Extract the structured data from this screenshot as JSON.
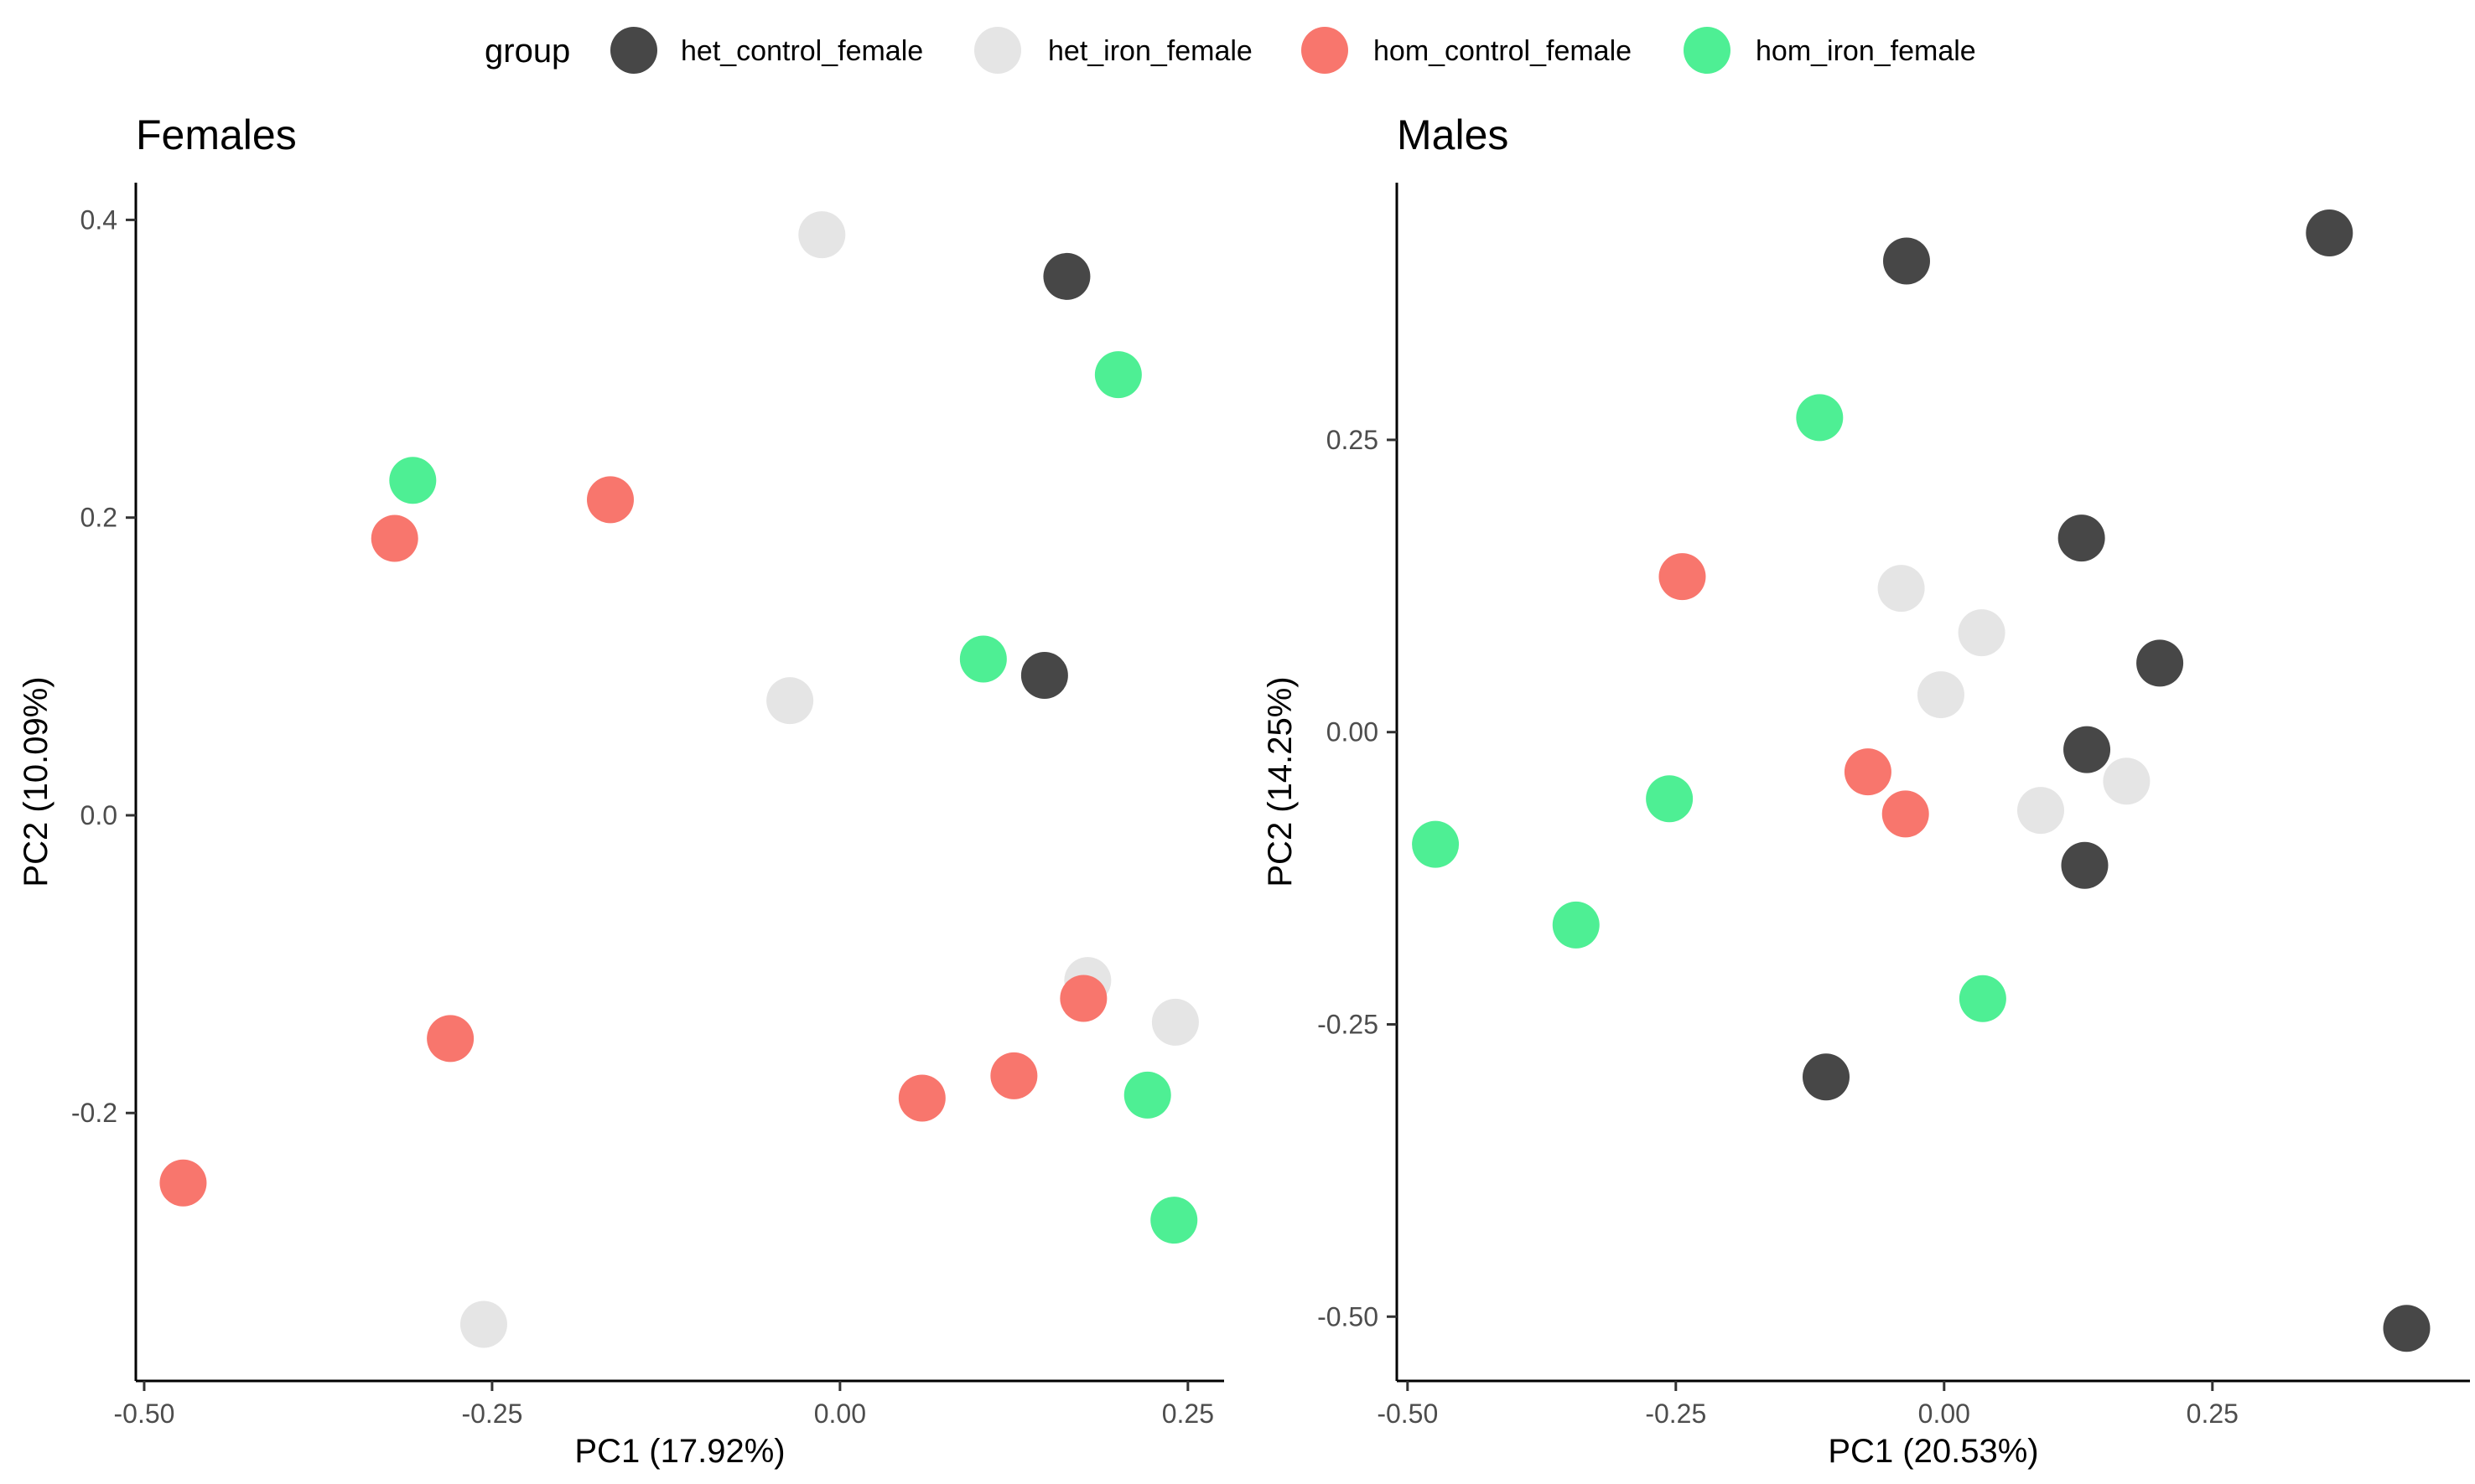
{
  "legend": {
    "title": "group",
    "items": [
      {
        "label": "het_control_female",
        "color": "#474747"
      },
      {
        "label": "het_iron_female",
        "color": "#e5e5e5"
      },
      {
        "label": "hom_control_female",
        "color": "#f8766d"
      },
      {
        "label": "hom_iron_female",
        "color": "#4eef94"
      }
    ]
  },
  "chart_data": [
    {
      "type": "scatter",
      "title": "Females",
      "xlabel": "PC1 (17.92%)",
      "ylabel": "PC2 (10.09%)",
      "xlim": [
        -0.506,
        0.276
      ],
      "ylim": [
        -0.38,
        0.425
      ],
      "xticks": [
        -0.5,
        -0.25,
        0.0,
        0.25
      ],
      "xtick_labels": [
        "-0.50",
        "-0.25",
        "0.00",
        "0.25"
      ],
      "yticks": [
        -0.2,
        0.0,
        0.2,
        0.4
      ],
      "ytick_labels": [
        "-0.2",
        "0.0",
        "0.2",
        "0.4"
      ],
      "grid": false,
      "series": [
        {
          "name": "het_control_female",
          "color": "#474747",
          "points": [
            [
              0.163,
              0.362
            ],
            [
              0.147,
              0.094
            ]
          ]
        },
        {
          "name": "het_iron_female",
          "color": "#e5e5e5",
          "points": [
            [
              -0.013,
              0.39
            ],
            [
              -0.036,
              0.077
            ],
            [
              0.178,
              -0.111
            ],
            [
              0.241,
              -0.139
            ],
            [
              -0.256,
              -0.342
            ]
          ]
        },
        {
          "name": "hom_control_female",
          "color": "#f8766d",
          "points": [
            [
              -0.32,
              0.186
            ],
            [
              -0.165,
              0.212
            ],
            [
              -0.28,
              -0.15
            ],
            [
              -0.472,
              -0.247
            ],
            [
              0.059,
              -0.19
            ],
            [
              0.125,
              -0.175
            ],
            [
              0.175,
              -0.123
            ]
          ]
        },
        {
          "name": "hom_iron_female",
          "color": "#4eef94",
          "points": [
            [
              -0.307,
              0.225
            ],
            [
              0.2,
              0.296
            ],
            [
              0.103,
              0.105
            ],
            [
              0.221,
              -0.188
            ],
            [
              0.24,
              -0.272
            ]
          ]
        }
      ]
    },
    {
      "type": "scatter",
      "title": "Males",
      "xlabel": "PC1 (20.53%)",
      "ylabel": "PC2 (14.25%)",
      "xlim": [
        -0.51,
        0.49
      ],
      "ylim": [
        -0.555,
        0.47
      ],
      "xticks": [
        -0.5,
        -0.25,
        0.0,
        0.25
      ],
      "xtick_labels": [
        "-0.50",
        "-0.25",
        "0.00",
        "0.25"
      ],
      "yticks": [
        -0.5,
        -0.25,
        0.0,
        0.25
      ],
      "ytick_labels": [
        "-0.50",
        "-0.25",
        "0.00",
        "0.25"
      ],
      "grid": false,
      "series": [
        {
          "name": "het_control_female",
          "color": "#474747",
          "points": [
            [
              0.359,
              0.427
            ],
            [
              -0.035,
              0.403
            ],
            [
              0.128,
              0.166
            ],
            [
              0.201,
              0.059
            ],
            [
              0.133,
              -0.015
            ],
            [
              0.131,
              -0.114
            ],
            [
              -0.11,
              -0.295
            ],
            [
              0.431,
              -0.51
            ]
          ]
        },
        {
          "name": "het_iron_female",
          "color": "#e5e5e5",
          "points": [
            [
              -0.04,
              0.123
            ],
            [
              0.035,
              0.085
            ],
            [
              -0.003,
              0.032
            ],
            [
              0.17,
              -0.042
            ],
            [
              0.09,
              -0.067
            ]
          ]
        },
        {
          "name": "hom_control_female",
          "color": "#f8766d",
          "points": [
            [
              -0.244,
              0.133
            ],
            [
              -0.071,
              -0.034
            ],
            [
              -0.036,
              -0.07
            ]
          ]
        },
        {
          "name": "hom_iron_female",
          "color": "#4eef94",
          "points": [
            [
              -0.116,
              0.269
            ],
            [
              -0.256,
              -0.057
            ],
            [
              -0.474,
              -0.096
            ],
            [
              -0.343,
              -0.165
            ],
            [
              0.036,
              -0.228
            ]
          ]
        }
      ]
    }
  ]
}
